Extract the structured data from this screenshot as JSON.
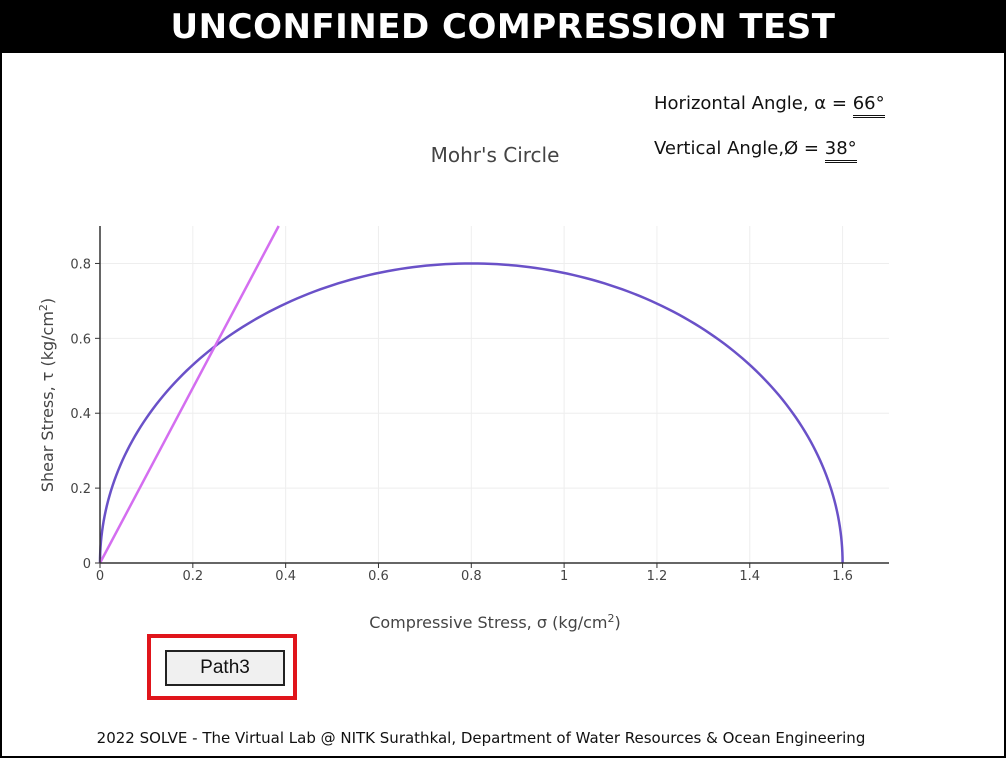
{
  "header": {
    "title": "UNCONFINED COMPRESSION TEST"
  },
  "angles": {
    "horizontal_label": "Horizontal Angle, α = ",
    "horizontal_value": "66°",
    "vertical_label": "Vertical Angle,Ø = ",
    "vertical_value": "38°"
  },
  "chart_data": {
    "type": "line",
    "title": "Mohr's Circle",
    "xlabel": "Compressive Stress, σ (kg/cm",
    "xlabel_sup": "2",
    "xlabel_end": ")",
    "ylabel": "Shear Stress, τ (kg/cm",
    "ylabel_sup": "2",
    "ylabel_end": ")",
    "xlim": [
      0,
      1.7
    ],
    "ylim": [
      0,
      0.9
    ],
    "x_ticks": [
      0,
      0.2,
      0.4,
      0.6,
      0.8,
      1,
      1.2,
      1.4,
      1.6
    ],
    "x_tick_labels": [
      "0",
      "0.2",
      "0.4",
      "0.6",
      "0.8",
      "1",
      "1.2",
      "1.4",
      "1.6"
    ],
    "y_ticks": [
      0,
      0.2,
      0.4,
      0.6,
      0.8
    ],
    "y_tick_labels": [
      "0",
      "0.2",
      "0.4",
      "0.6",
      "0.8"
    ],
    "grid": true,
    "series": [
      {
        "kind": "semicircle",
        "center": 0.8,
        "radius": 0.8,
        "color": "#6a51c8"
      },
      {
        "kind": "line",
        "x": [
          0,
          0.385
        ],
        "y": [
          0,
          0.9
        ],
        "color": "#d46ef0"
      }
    ]
  },
  "path_button": {
    "label": "Path3"
  },
  "footer": {
    "text": "2022 SOLVE - The Virtual Lab @ NITK Surathkal, Department of Water Resources & Ocean Engineering"
  }
}
